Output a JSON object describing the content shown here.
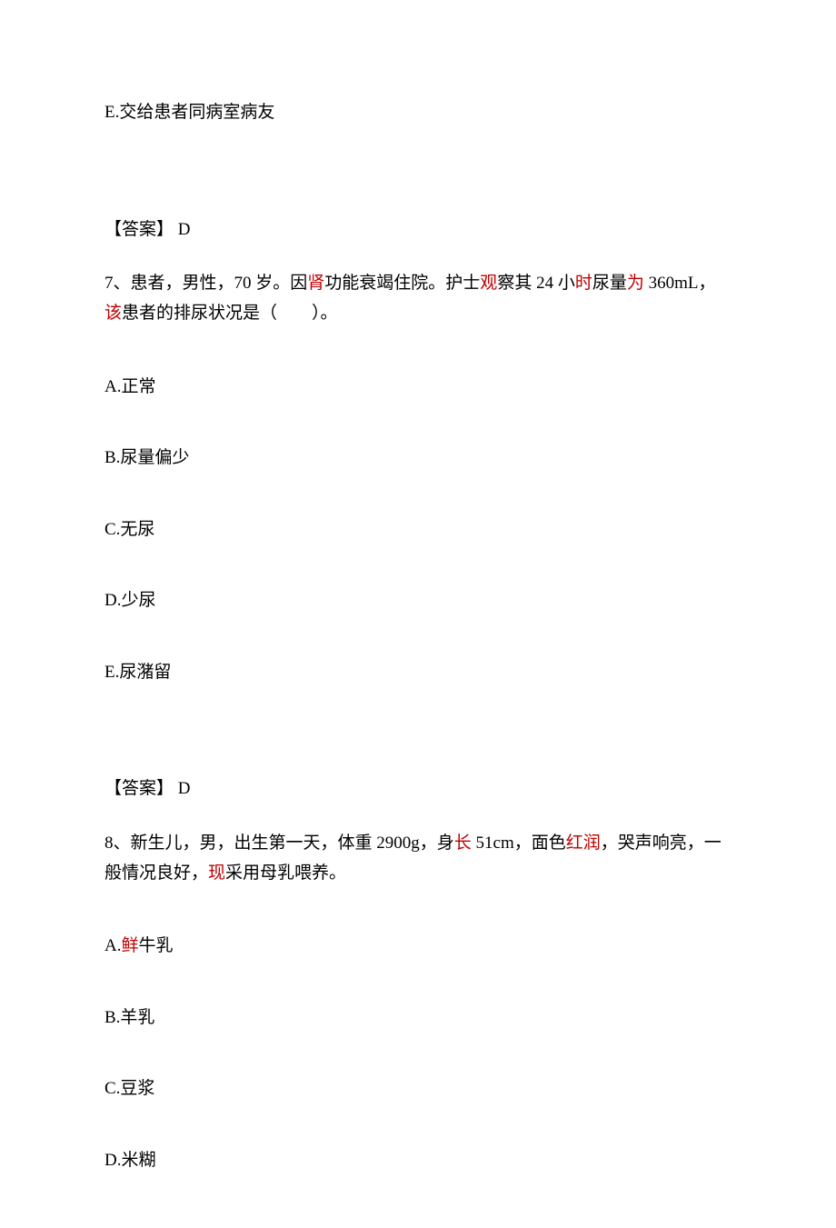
{
  "q6": {
    "optionE": "E.交给患者同病室病友",
    "answer": "【答案】 D"
  },
  "q7": {
    "stem_pre": "7、患者，男性，70 岁。因",
    "stem_red1": "肾",
    "stem_mid1": "功能衰竭住院。护士",
    "stem_red2": "观",
    "stem_mid2": "察其 24 小",
    "stem_red3": "时",
    "stem_mid3": "尿量",
    "stem_red4": "为",
    "stem_mid4": " 360mL，",
    "stem_red5": "该",
    "stem_end": "患者的排尿状况是（　　）。",
    "optionA": "A.正常",
    "optionB": "B.尿量偏少",
    "optionC": "C.无尿",
    "optionD": "D.少尿",
    "optionE": "E.尿潴留",
    "answer": "【答案】 D"
  },
  "q8": {
    "stem_pre": "8、新生儿，男，出生第一天，体重 2900g，身",
    "stem_red1": "长",
    "stem_mid1": " 51cm，面色",
    "stem_red2": "红润",
    "stem_mid2": "，哭声响亮，一般情况良好，",
    "stem_red3": "现",
    "stem_end": "采用母乳喂养。",
    "optionA_pre": "A.",
    "optionA_red": "鲜",
    "optionA_end": "牛乳",
    "optionB": "B.羊乳",
    "optionC": "C.豆浆",
    "optionD": "D.米糊"
  }
}
